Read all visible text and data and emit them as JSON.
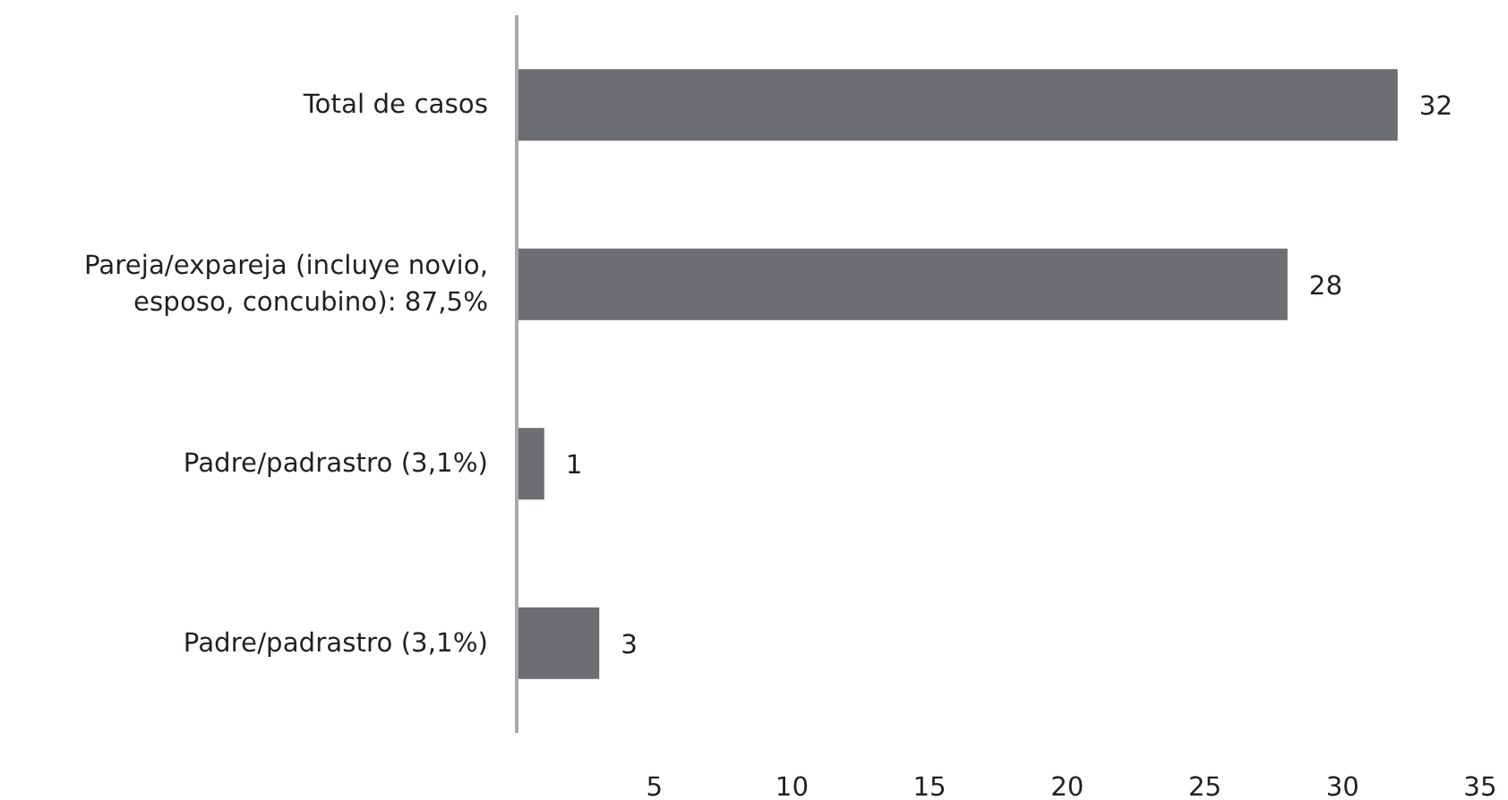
{
  "chart_data": {
    "type": "bar",
    "orientation": "horizontal",
    "categories": [
      "Total de casos",
      "Pareja/expareja (incluye novio, esposo, concubino): 87,5%",
      "Padre/padrastro (3,1%)",
      "Padre/padrastro (3,1%)"
    ],
    "values": [
      32,
      28,
      1,
      3
    ],
    "color": "#6d6e71",
    "xlim": [
      0,
      35
    ],
    "xticks": [
      5,
      10,
      15,
      20,
      25,
      30,
      35
    ],
    "data_labels": true
  }
}
